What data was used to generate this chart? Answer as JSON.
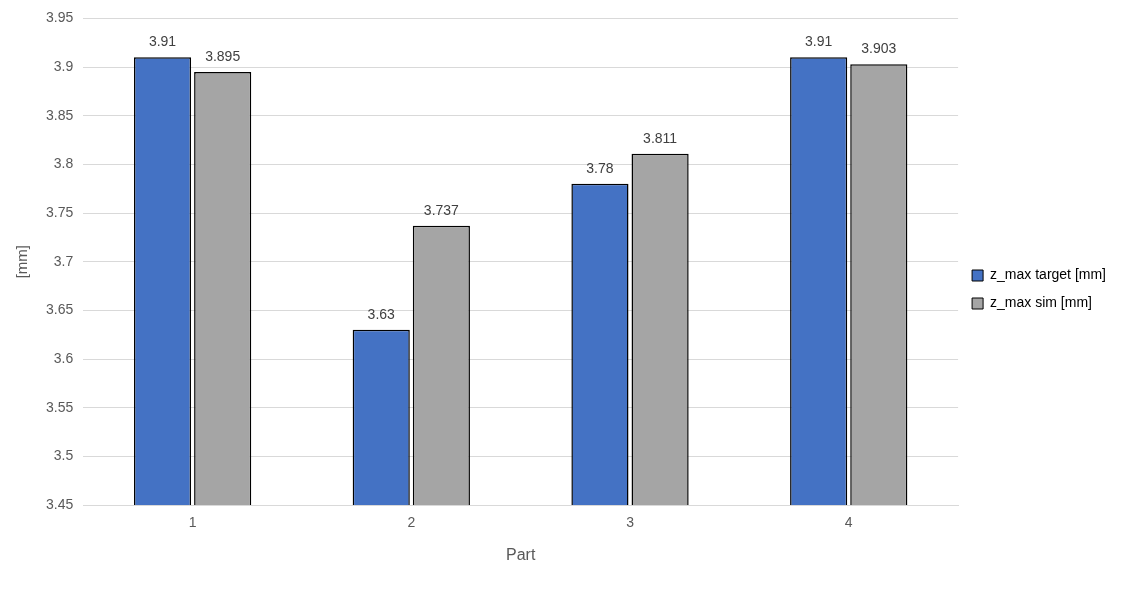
{
  "chart_data": {
    "type": "bar",
    "xlabel": "Part",
    "ylabel": "[mm]",
    "categories": [
      "1",
      "2",
      "3",
      "4"
    ],
    "series": [
      {
        "name": "z_max target [mm]",
        "color": "#4472c4",
        "values": [
          3.91,
          3.63,
          3.78,
          3.91
        ]
      },
      {
        "name": "z_max sim [mm]",
        "color": "#a5a5a5",
        "values": [
          3.895,
          3.737,
          3.811,
          3.903
        ]
      }
    ],
    "ylim": [
      3.45,
      3.95
    ],
    "yticks": [
      3.45,
      3.5,
      3.55,
      3.6,
      3.65,
      3.7,
      3.75,
      3.8,
      3.85,
      3.9,
      3.95
    ],
    "grid": "y",
    "legend": "right",
    "data_labels": true
  }
}
